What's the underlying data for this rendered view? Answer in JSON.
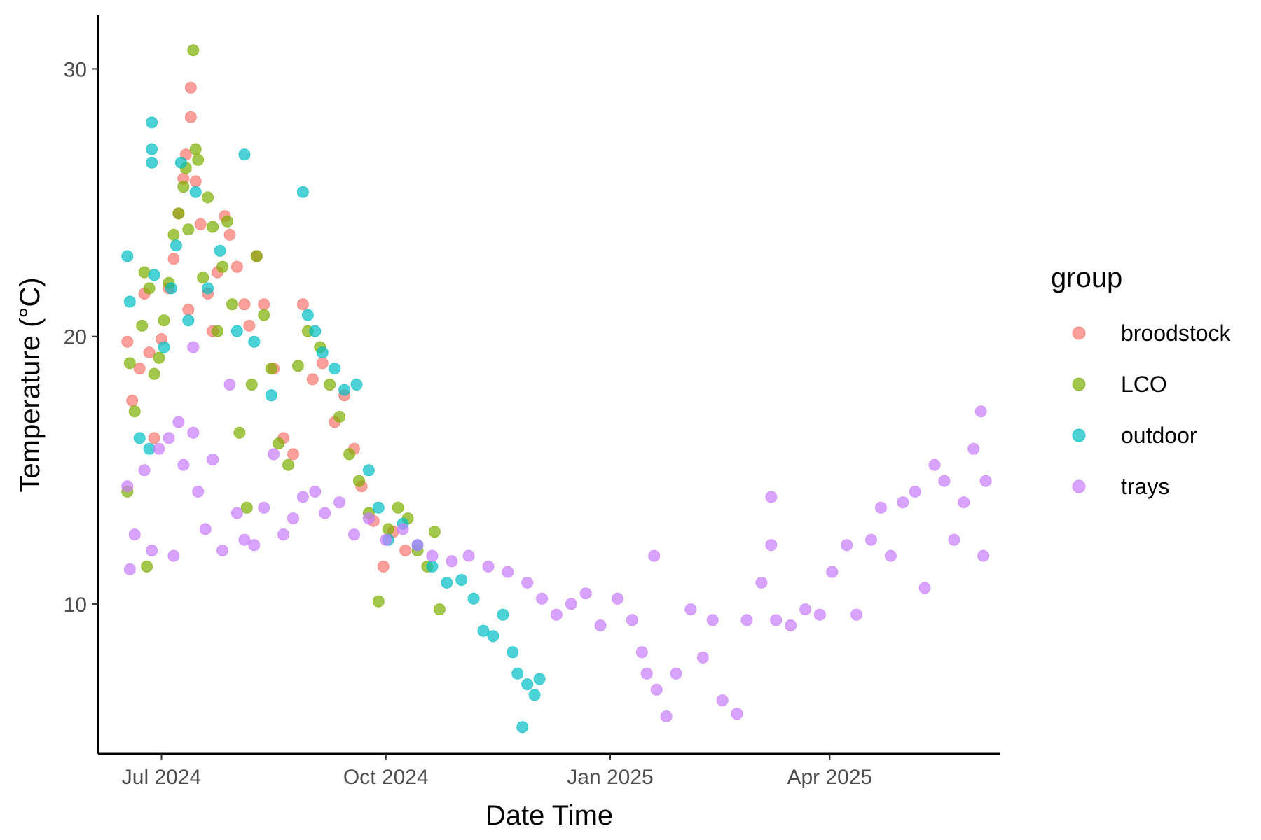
{
  "chart_data": {
    "type": "scatter",
    "title": "",
    "xlabel": "Date Time",
    "ylabel": "Temperature (°C)",
    "x_type": "date",
    "xlim": [
      "2024-06-05",
      "2025-06-10"
    ],
    "ylim": [
      4.4,
      32.0
    ],
    "x_ticks": [
      {
        "date": "2024-07-01",
        "label": "Jul 2024"
      },
      {
        "date": "2024-10-01",
        "label": "Oct 2024"
      },
      {
        "date": "2025-01-01",
        "label": "Jan 2025"
      },
      {
        "date": "2025-04-01",
        "label": "Apr 2025"
      }
    ],
    "y_ticks": [
      10,
      20,
      30
    ],
    "grid": false,
    "legend": {
      "title": "group",
      "position": "right"
    },
    "series": [
      {
        "name": "broodstock",
        "color": "#F8766D",
        "points": [
          [
            "2024-06-17",
            19.8
          ],
          [
            "2024-06-19",
            17.6
          ],
          [
            "2024-06-22",
            18.8
          ],
          [
            "2024-06-24",
            21.6
          ],
          [
            "2024-06-26",
            19.4
          ],
          [
            "2024-06-28",
            16.2
          ],
          [
            "2024-07-01",
            19.9
          ],
          [
            "2024-07-04",
            21.8
          ],
          [
            "2024-07-06",
            22.9
          ],
          [
            "2024-07-08",
            24.6
          ],
          [
            "2024-07-10",
            25.9
          ],
          [
            "2024-07-11",
            26.8
          ],
          [
            "2024-07-12",
            21.0
          ],
          [
            "2024-07-13",
            29.3
          ],
          [
            "2024-07-13",
            28.2
          ],
          [
            "2024-07-15",
            25.8
          ],
          [
            "2024-07-17",
            24.2
          ],
          [
            "2024-07-20",
            21.6
          ],
          [
            "2024-07-22",
            20.2
          ],
          [
            "2024-07-24",
            22.4
          ],
          [
            "2024-07-27",
            24.5
          ],
          [
            "2024-07-29",
            23.8
          ],
          [
            "2024-08-01",
            22.6
          ],
          [
            "2024-08-04",
            21.2
          ],
          [
            "2024-08-06",
            20.4
          ],
          [
            "2024-08-09",
            23.0
          ],
          [
            "2024-08-12",
            21.2
          ],
          [
            "2024-08-16",
            18.8
          ],
          [
            "2024-08-20",
            16.2
          ],
          [
            "2024-08-24",
            15.6
          ],
          [
            "2024-08-28",
            21.2
          ],
          [
            "2024-09-01",
            18.4
          ],
          [
            "2024-09-05",
            19.0
          ],
          [
            "2024-09-10",
            16.8
          ],
          [
            "2024-09-14",
            17.8
          ],
          [
            "2024-09-18",
            15.8
          ],
          [
            "2024-09-21",
            14.4
          ],
          [
            "2024-09-26",
            13.1
          ],
          [
            "2024-09-30",
            11.4
          ],
          [
            "2024-10-04",
            12.7
          ],
          [
            "2024-10-09",
            12.0
          ]
        ]
      },
      {
        "name": "LCO",
        "color": "#7CAE00",
        "points": [
          [
            "2024-06-17",
            14.2
          ],
          [
            "2024-06-18",
            19.0
          ],
          [
            "2024-06-20",
            17.2
          ],
          [
            "2024-06-23",
            20.4
          ],
          [
            "2024-06-24",
            22.4
          ],
          [
            "2024-06-25",
            11.4
          ],
          [
            "2024-06-26",
            21.8
          ],
          [
            "2024-06-28",
            18.6
          ],
          [
            "2024-06-30",
            19.2
          ],
          [
            "2024-07-02",
            20.6
          ],
          [
            "2024-07-04",
            22.0
          ],
          [
            "2024-07-06",
            23.8
          ],
          [
            "2024-07-08",
            24.6
          ],
          [
            "2024-07-10",
            25.6
          ],
          [
            "2024-07-11",
            26.3
          ],
          [
            "2024-07-12",
            24.0
          ],
          [
            "2024-07-14",
            30.7
          ],
          [
            "2024-07-15",
            27.0
          ],
          [
            "2024-07-16",
            26.6
          ],
          [
            "2024-07-18",
            22.2
          ],
          [
            "2024-07-20",
            25.2
          ],
          [
            "2024-07-22",
            24.1
          ],
          [
            "2024-07-24",
            20.2
          ],
          [
            "2024-07-26",
            22.6
          ],
          [
            "2024-07-28",
            24.3
          ],
          [
            "2024-07-30",
            21.2
          ],
          [
            "2024-08-02",
            16.4
          ],
          [
            "2024-08-05",
            13.6
          ],
          [
            "2024-08-07",
            18.2
          ],
          [
            "2024-08-09",
            23.0
          ],
          [
            "2024-08-12",
            20.8
          ],
          [
            "2024-08-15",
            18.8
          ],
          [
            "2024-08-18",
            16.0
          ],
          [
            "2024-08-22",
            15.2
          ],
          [
            "2024-08-26",
            18.9
          ],
          [
            "2024-08-30",
            20.2
          ],
          [
            "2024-09-04",
            19.6
          ],
          [
            "2024-09-08",
            18.2
          ],
          [
            "2024-09-12",
            17.0
          ],
          [
            "2024-09-16",
            15.6
          ],
          [
            "2024-09-20",
            14.6
          ],
          [
            "2024-09-24",
            13.4
          ],
          [
            "2024-09-28",
            10.1
          ],
          [
            "2024-10-02",
            12.8
          ],
          [
            "2024-10-06",
            13.6
          ],
          [
            "2024-10-10",
            13.2
          ],
          [
            "2024-10-14",
            12.0
          ],
          [
            "2024-10-18",
            11.4
          ],
          [
            "2024-10-21",
            12.7
          ],
          [
            "2024-10-23",
            9.8
          ]
        ]
      },
      {
        "name": "outdoor",
        "color": "#00BFC4",
        "points": [
          [
            "2024-06-17",
            23.0
          ],
          [
            "2024-06-18",
            21.3
          ],
          [
            "2024-06-22",
            16.2
          ],
          [
            "2024-06-26",
            15.8
          ],
          [
            "2024-06-27",
            28.0
          ],
          [
            "2024-06-27",
            27.0
          ],
          [
            "2024-06-27",
            26.5
          ],
          [
            "2024-06-28",
            22.3
          ],
          [
            "2024-07-02",
            19.6
          ],
          [
            "2024-07-05",
            21.8
          ],
          [
            "2024-07-07",
            23.4
          ],
          [
            "2024-07-09",
            26.5
          ],
          [
            "2024-07-12",
            20.6
          ],
          [
            "2024-07-15",
            25.4
          ],
          [
            "2024-07-20",
            21.8
          ],
          [
            "2024-07-25",
            23.2
          ],
          [
            "2024-08-01",
            20.2
          ],
          [
            "2024-08-04",
            26.8
          ],
          [
            "2024-08-08",
            19.8
          ],
          [
            "2024-08-15",
            17.8
          ],
          [
            "2024-08-28",
            25.4
          ],
          [
            "2024-08-30",
            20.8
          ],
          [
            "2024-09-02",
            20.2
          ],
          [
            "2024-09-05",
            19.4
          ],
          [
            "2024-09-10",
            18.8
          ],
          [
            "2024-09-14",
            18.0
          ],
          [
            "2024-09-19",
            18.2
          ],
          [
            "2024-09-24",
            15.0
          ],
          [
            "2024-09-28",
            13.6
          ],
          [
            "2024-10-02",
            12.4
          ],
          [
            "2024-10-08",
            13.0
          ],
          [
            "2024-10-14",
            12.2
          ],
          [
            "2024-10-20",
            11.4
          ],
          [
            "2024-10-26",
            10.8
          ],
          [
            "2024-11-01",
            10.9
          ],
          [
            "2024-11-06",
            10.2
          ],
          [
            "2024-11-10",
            9.0
          ],
          [
            "2024-11-14",
            8.8
          ],
          [
            "2024-11-18",
            9.6
          ],
          [
            "2024-11-22",
            8.2
          ],
          [
            "2024-11-24",
            7.4
          ],
          [
            "2024-11-26",
            5.4
          ],
          [
            "2024-11-28",
            7.0
          ],
          [
            "2024-12-01",
            6.6
          ],
          [
            "2024-12-03",
            7.2
          ]
        ]
      },
      {
        "name": "trays",
        "color": "#C77CFF",
        "points": [
          [
            "2024-06-17",
            14.4
          ],
          [
            "2024-06-18",
            11.3
          ],
          [
            "2024-06-20",
            12.6
          ],
          [
            "2024-06-24",
            15.0
          ],
          [
            "2024-06-27",
            12.0
          ],
          [
            "2024-06-30",
            15.8
          ],
          [
            "2024-07-04",
            16.2
          ],
          [
            "2024-07-06",
            11.8
          ],
          [
            "2024-07-08",
            16.8
          ],
          [
            "2024-07-10",
            15.2
          ],
          [
            "2024-07-14",
            19.6
          ],
          [
            "2024-07-14",
            16.4
          ],
          [
            "2024-07-16",
            14.2
          ],
          [
            "2024-07-19",
            12.8
          ],
          [
            "2024-07-22",
            15.4
          ],
          [
            "2024-07-26",
            12.0
          ],
          [
            "2024-07-29",
            18.2
          ],
          [
            "2024-08-01",
            13.4
          ],
          [
            "2024-08-04",
            12.4
          ],
          [
            "2024-08-08",
            12.2
          ],
          [
            "2024-08-12",
            13.6
          ],
          [
            "2024-08-16",
            15.6
          ],
          [
            "2024-08-20",
            12.6
          ],
          [
            "2024-08-24",
            13.2
          ],
          [
            "2024-08-28",
            14.0
          ],
          [
            "2024-09-02",
            14.2
          ],
          [
            "2024-09-06",
            13.4
          ],
          [
            "2024-09-12",
            13.8
          ],
          [
            "2024-09-18",
            12.6
          ],
          [
            "2024-09-24",
            13.2
          ],
          [
            "2024-10-01",
            12.4
          ],
          [
            "2024-10-08",
            12.8
          ],
          [
            "2024-10-14",
            12.2
          ],
          [
            "2024-10-20",
            11.8
          ],
          [
            "2024-10-28",
            11.6
          ],
          [
            "2024-11-04",
            11.8
          ],
          [
            "2024-11-12",
            11.4
          ],
          [
            "2024-11-20",
            11.2
          ],
          [
            "2024-11-28",
            10.8
          ],
          [
            "2024-12-04",
            10.2
          ],
          [
            "2024-12-10",
            9.6
          ],
          [
            "2024-12-16",
            10.0
          ],
          [
            "2024-12-22",
            10.4
          ],
          [
            "2024-12-28",
            9.2
          ],
          [
            "2025-01-04",
            10.2
          ],
          [
            "2025-01-10",
            9.4
          ],
          [
            "2025-01-14",
            8.2
          ],
          [
            "2025-01-16",
            7.4
          ],
          [
            "2025-01-19",
            11.8
          ],
          [
            "2025-01-20",
            6.8
          ],
          [
            "2025-01-24",
            5.8
          ],
          [
            "2025-01-28",
            7.4
          ],
          [
            "2025-02-03",
            9.8
          ],
          [
            "2025-02-08",
            8.0
          ],
          [
            "2025-02-12",
            9.4
          ],
          [
            "2025-02-16",
            6.4
          ],
          [
            "2025-02-22",
            5.9
          ],
          [
            "2025-02-26",
            9.4
          ],
          [
            "2025-03-04",
            10.8
          ],
          [
            "2025-03-08",
            14.0
          ],
          [
            "2025-03-08",
            12.2
          ],
          [
            "2025-03-10",
            9.4
          ],
          [
            "2025-03-16",
            9.2
          ],
          [
            "2025-03-22",
            9.8
          ],
          [
            "2025-03-28",
            9.6
          ],
          [
            "2025-04-02",
            11.2
          ],
          [
            "2025-04-08",
            12.2
          ],
          [
            "2025-04-12",
            9.6
          ],
          [
            "2025-04-18",
            12.4
          ],
          [
            "2025-04-22",
            13.6
          ],
          [
            "2025-04-26",
            11.8
          ],
          [
            "2025-05-01",
            13.8
          ],
          [
            "2025-05-06",
            14.2
          ],
          [
            "2025-05-10",
            10.6
          ],
          [
            "2025-05-14",
            15.2
          ],
          [
            "2025-05-18",
            14.6
          ],
          [
            "2025-05-22",
            12.4
          ],
          [
            "2025-05-26",
            13.8
          ],
          [
            "2025-05-30",
            15.8
          ],
          [
            "2025-06-02",
            17.2
          ],
          [
            "2025-06-03",
            11.8
          ],
          [
            "2025-06-04",
            14.6
          ]
        ]
      }
    ]
  }
}
